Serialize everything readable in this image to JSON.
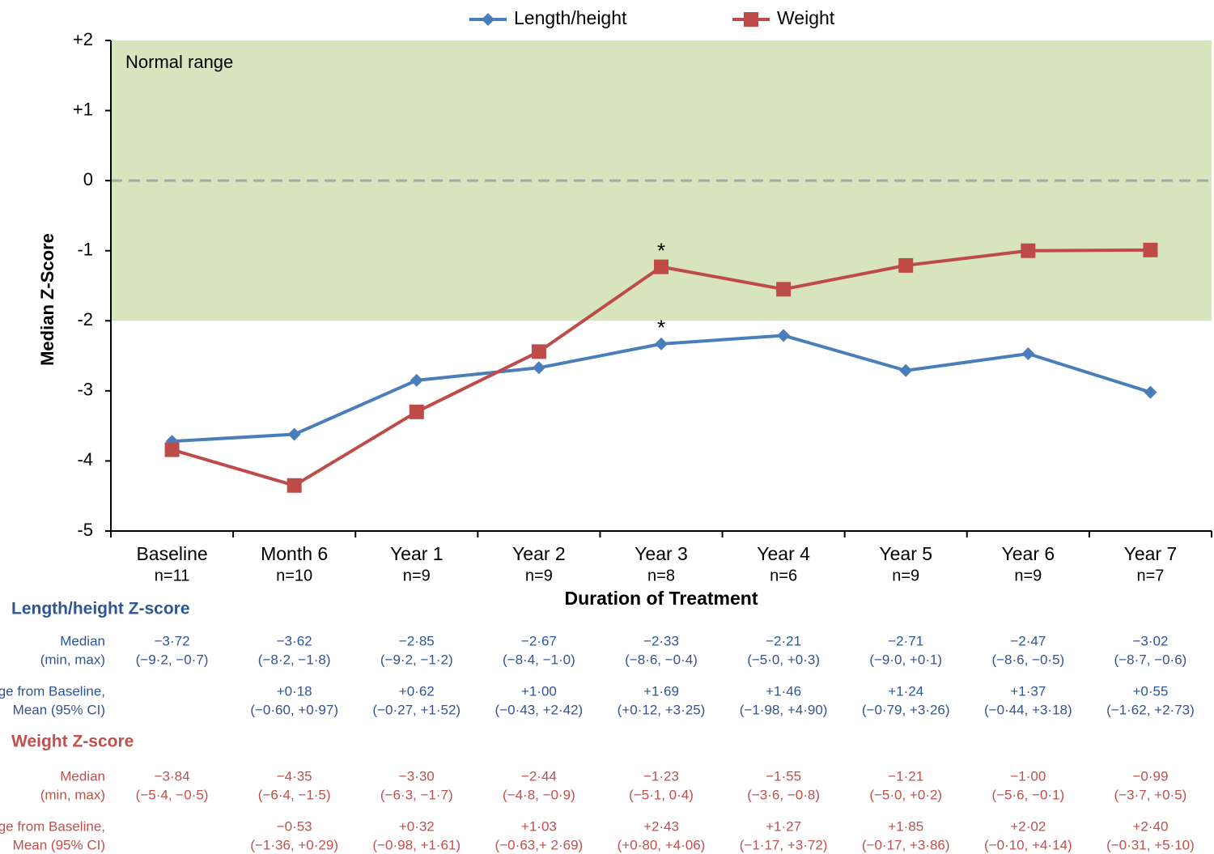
{
  "chart_data": {
    "type": "line",
    "categories": [
      "Baseline",
      "Month 6",
      "Year 1",
      "Year 2",
      "Year 3",
      "Year 4",
      "Year 5",
      "Year 6",
      "Year 7"
    ],
    "n_labels": [
      "n=11",
      "n=10",
      "n=9",
      "n=9",
      "n=8",
      "n=6",
      "n=9",
      "n=9",
      "n=7"
    ],
    "series": [
      {
        "name": "Length/height",
        "color": "#4a7ebb",
        "marker": "diamond",
        "values": [
          -3.72,
          -3.62,
          -2.85,
          -2.67,
          -2.33,
          -2.21,
          -2.71,
          -2.47,
          -3.02
        ]
      },
      {
        "name": "Weight",
        "color": "#be4b48",
        "marker": "square",
        "values": [
          -3.84,
          -4.35,
          -3.3,
          -2.44,
          -1.23,
          -1.55,
          -1.21,
          -1.0,
          -0.99
        ]
      }
    ],
    "ylabel": "Median Z-Score",
    "xlabel": "Duration of Treatment",
    "ylim": [
      -5,
      2
    ],
    "yticks": [
      {
        "value": 2,
        "label": "+2"
      },
      {
        "value": 1,
        "label": "+1"
      },
      0,
      -1,
      -2,
      -3,
      -4,
      -5
    ],
    "band": {
      "from": -2,
      "to": 2,
      "label": "Normal range",
      "color": "#d7e4bd"
    },
    "reference_line": {
      "value": 0,
      "style": "dashed",
      "color": "#a6a6a6"
    },
    "annotations": [
      {
        "text": "*",
        "category": "Year 3",
        "series": "Weight"
      },
      {
        "text": "*",
        "category": "Year 3",
        "series": "Length/height"
      }
    ],
    "legend": "top"
  },
  "table": {
    "sections": [
      {
        "title": "Length/height Z-score",
        "color": "#2f5597",
        "rows": [
          {
            "label": [
              "Median",
              "(min, max)"
            ],
            "cells": [
              [
                "−3·72",
                "(−9·2, −0·7)"
              ],
              [
                "−3·62",
                "(−8·2, −1·8)"
              ],
              [
                "−2·85",
                "(−9·2, −1·2)"
              ],
              [
                "−2·67",
                "(−8·4, −1·0)"
              ],
              [
                "−2·33",
                "(−8·6, −0·4)"
              ],
              [
                "−2·21",
                "(−5·0, +0·3)"
              ],
              [
                "−2·71",
                "(−9·0, +0·1)"
              ],
              [
                "−2·47",
                "(−8·6, −0·5)"
              ],
              [
                "−3·02",
                "(−8·7, −0·6)"
              ]
            ]
          },
          {
            "label": [
              "Change from Baseline,",
              "Mean (95% CI)"
            ],
            "cells": [
              null,
              [
                "+0·18",
                "(−0·60, +0·97)"
              ],
              [
                "+0·62",
                "(−0·27, +1·52)"
              ],
              [
                "+1·00",
                "(−0·43, +2·42)"
              ],
              [
                "+1·69",
                "(+0·12, +3·25)"
              ],
              [
                "+1·46",
                "(−1·98, +4·90)"
              ],
              [
                "+1·24",
                "(−0·79, +3·26)"
              ],
              [
                "+1·37",
                "(−0·44, +3·18)"
              ],
              [
                "+0·55",
                "(−1·62, +2·73)"
              ]
            ]
          }
        ]
      },
      {
        "title": "Weight Z-score",
        "color": "#c0504d",
        "rows": [
          {
            "label": [
              "Median",
              "(min, max)"
            ],
            "cells": [
              [
                "−3·84",
                "(−5·4, −0·5)"
              ],
              [
                "−4·35",
                "(−6·4, −1·5)"
              ],
              [
                "−3·30",
                "(−6·3, −1·7)"
              ],
              [
                "−2·44",
                "(−4·8, −0·9)"
              ],
              [
                "−1·23",
                "(−5·1, 0·4)"
              ],
              [
                "−1·55",
                "(−3·6, −0·8)"
              ],
              [
                "−1·21",
                "(−5·0, +0·2)"
              ],
              [
                "−1·00",
                "(−5·6, −0·1)"
              ],
              [
                "−0·99",
                "(−3·7, +0·5)"
              ]
            ]
          },
          {
            "label": [
              "Change from Baseline,",
              "Mean (95% CI)"
            ],
            "cells": [
              null,
              [
                "−0·53",
                "(−1·36, +0·29)"
              ],
              [
                "+0·32",
                "(−0·98, +1·61)"
              ],
              [
                "+1·03",
                "(−0·63,+ 2·69)"
              ],
              [
                "+2·43",
                "(+0·80, +4·06)"
              ],
              [
                "+1·27",
                "(−1·17, +3·72)"
              ],
              [
                "+1·85",
                "(−0·17, +3·86)"
              ],
              [
                "+2·02",
                "(−0·10, +4·14)"
              ],
              [
                "+2·40",
                "(−0·31, +5·10)"
              ]
            ]
          }
        ]
      }
    ]
  }
}
